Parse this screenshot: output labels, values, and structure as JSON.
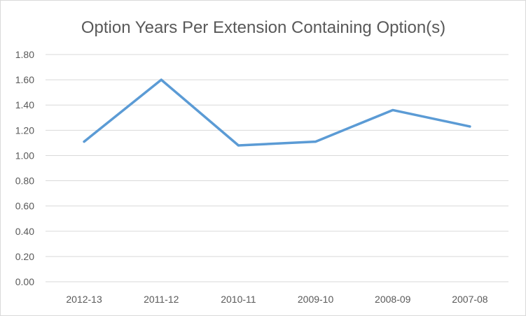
{
  "chart_data": {
    "type": "line",
    "title": "Option Years Per Extension Containing Option(s)",
    "xlabel": "",
    "ylabel": "",
    "categories": [
      "2012-13",
      "2011-12",
      "2010-11",
      "2009-10",
      "2008-09",
      "2007-08"
    ],
    "series": [
      {
        "name": "Option Years Per Extension",
        "values": [
          1.11,
          1.6,
          1.08,
          1.11,
          1.36,
          1.23
        ],
        "color": "#5b9bd5"
      }
    ],
    "ylim": [
      0,
      1.8
    ],
    "ytick_step": 0.2,
    "ytick_labels": [
      "0.00",
      "0.20",
      "0.40",
      "0.60",
      "0.80",
      "1.00",
      "1.20",
      "1.40",
      "1.60",
      "1.80"
    ],
    "grid": true,
    "legend": "none"
  }
}
